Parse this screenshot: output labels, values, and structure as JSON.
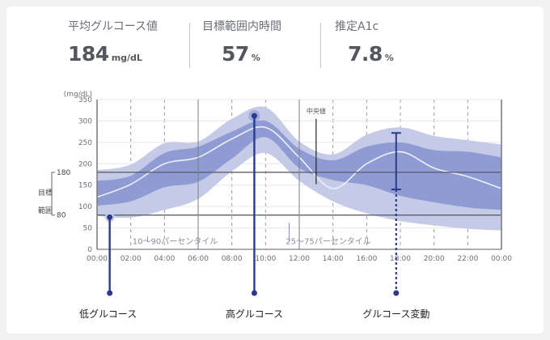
{
  "stats": [
    {
      "label": "平均グルコース値",
      "value": "184",
      "unit": "mg/dL"
    },
    {
      "label": "目標範囲内時間",
      "value": "57",
      "unit": "%"
    },
    {
      "label": "推定A1c",
      "value": "7.8",
      "unit": "%"
    }
  ],
  "chart_data": {
    "type": "area",
    "ylabel": "(mg/dL)",
    "ylim": [
      0,
      350
    ],
    "yticks": [
      0,
      50,
      100,
      150,
      200,
      250,
      300,
      350
    ],
    "x": [
      "00:00",
      "02:00",
      "04:00",
      "06:00",
      "08:00",
      "10:00",
      "12:00",
      "14:00",
      "16:00",
      "18:00",
      "20:00",
      "22:00",
      "00:00"
    ],
    "target_range": {
      "label": "目標範囲",
      "low": 80,
      "high": 180
    },
    "percentile_labels": {
      "outer": "10～90パーセンタイル",
      "inner": "25～75パーセンタイル"
    },
    "median_label": "中央値",
    "series": [
      {
        "name": "p10",
        "values": [
          78,
          74,
          92,
          118,
          182,
          225,
          160,
          112,
          84,
          66,
          56,
          48,
          44
        ]
      },
      {
        "name": "p25",
        "values": [
          102,
          112,
          145,
          158,
          212,
          262,
          190,
          162,
          150,
          125,
          110,
          98,
          92
        ]
      },
      {
        "name": "median",
        "values": [
          122,
          152,
          200,
          215,
          258,
          285,
          215,
          142,
          200,
          228,
          190,
          170,
          142
        ]
      },
      {
        "name": "p75",
        "values": [
          160,
          172,
          225,
          240,
          275,
          300,
          235,
          208,
          240,
          250,
          232,
          228,
          215
        ]
      },
      {
        "name": "p90",
        "values": [
          185,
          198,
          248,
          252,
          305,
          332,
          252,
          222,
          268,
          285,
          265,
          255,
          245
        ]
      }
    ],
    "callouts": [
      {
        "label": "低グルコース",
        "time": "00:45",
        "glucose": 75
      },
      {
        "label": "高グルコース",
        "time": "09:20",
        "glucose": 312
      },
      {
        "label": "グルコース変動",
        "time": "17:45",
        "low": 140,
        "high": 272
      }
    ]
  }
}
